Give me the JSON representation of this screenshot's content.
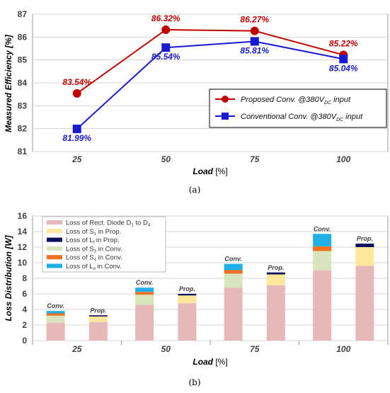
{
  "chart_data": [
    {
      "type": "line",
      "caption": "(a)",
      "xlabel": "Load [%]",
      "ylabel": "Measured Efficiency [%]",
      "categories": [
        "25",
        "50",
        "75",
        "100"
      ],
      "ylim": [
        81,
        87
      ],
      "yticks": [
        "81",
        "82",
        "83",
        "84",
        "85",
        "86",
        "87"
      ],
      "grid": true,
      "legend_position": "bottom-right",
      "series": [
        {
          "name_main": "Proposed Conv. @380V",
          "name_sub": "DC",
          "name_tail": " input",
          "values": [
            83.54,
            86.32,
            86.27,
            85.22
          ],
          "labels": [
            "83.54%",
            "86.32%",
            "86.27%",
            "85.22%"
          ],
          "color": "#c00000",
          "marker": "circle"
        },
        {
          "name_main": "Conventional Conv. @380V",
          "name_sub": "DC",
          "name_tail": " input",
          "values": [
            81.99,
            85.54,
            85.81,
            85.04
          ],
          "labels": [
            "81.99%",
            "85.54%",
            "85.81%",
            "85.04%"
          ],
          "color": "#1a1ad0",
          "marker": "square"
        }
      ]
    },
    {
      "type": "bar",
      "stacked": true,
      "caption": "(b)",
      "xlabel": "Load [%]",
      "ylabel": "Loss Distribution [W]",
      "categories": [
        "25",
        "50",
        "75",
        "100"
      ],
      "bar_labels": [
        "Conv.",
        "Prop."
      ],
      "ylim": [
        0,
        16
      ],
      "yticks": [
        "0",
        "2",
        "4",
        "6",
        "8",
        "10",
        "12",
        "14",
        "16"
      ],
      "grid": true,
      "legend_position": "top-left",
      "legend": [
        {
          "text": "Loss of Rect. Diode D",
          "sub1": "1",
          "mid": " to D",
          "sub2": "4",
          "color": "#e6b9b8"
        },
        {
          "text": "Loss of S",
          "sub1": "1",
          "mid": " in Prop.",
          "sub2": "",
          "color": "#ffe699"
        },
        {
          "text": "Loss of L",
          "sub1": "f",
          "mid": " in Prop.",
          "sub2": "",
          "color": "#0e0e5e"
        },
        {
          "text": "Loss of S",
          "sub1": "3",
          "mid": " in Conv.",
          "sub2": "",
          "color": "#d8e4bc"
        },
        {
          "text": "Loss of S",
          "sub1": "4",
          "mid": " in Conv.",
          "sub2": "",
          "color": "#f07020"
        },
        {
          "text": "Loss of L",
          "sub1": "o",
          "mid": " in Conv.",
          "sub2": "",
          "color": "#1fb0e8"
        }
      ],
      "bars": [
        {
          "category": "25",
          "group": "Conv.",
          "segments": [
            {
              "component": "Loss of Rect. Diode D1 to D4",
              "value": 2.3
            },
            {
              "component": "Loss of S3 in Conv.",
              "value": 0.9
            },
            {
              "component": "Loss of S4 in Conv.",
              "value": 0.3
            },
            {
              "component": "Loss of Lo in Conv.",
              "value": 0.3
            }
          ]
        },
        {
          "category": "25",
          "group": "Prop.",
          "segments": [
            {
              "component": "Loss of Rect. Diode D1 to D4",
              "value": 2.4
            },
            {
              "component": "Loss of S1 in Prop.",
              "value": 0.7
            },
            {
              "component": "Loss of Lf in Prop.",
              "value": 0.15
            }
          ]
        },
        {
          "category": "50",
          "group": "Conv.",
          "segments": [
            {
              "component": "Loss of Rect. Diode D1 to D4",
              "value": 4.6
            },
            {
              "component": "Loss of S3 in Conv.",
              "value": 1.3
            },
            {
              "component": "Loss of S4 in Conv.",
              "value": 0.35
            },
            {
              "component": "Loss of Lo in Conv.",
              "value": 0.55
            }
          ]
        },
        {
          "category": "50",
          "group": "Prop.",
          "segments": [
            {
              "component": "Loss of Rect. Diode D1 to D4",
              "value": 4.8
            },
            {
              "component": "Loss of S1 in Prop.",
              "value": 1.0
            },
            {
              "component": "Loss of Lf in Prop.",
              "value": 0.2
            }
          ]
        },
        {
          "category": "75",
          "group": "Conv.",
          "segments": [
            {
              "component": "Loss of Rect. Diode D1 to D4",
              "value": 6.8
            },
            {
              "component": "Loss of S3 in Conv.",
              "value": 1.8
            },
            {
              "component": "Loss of S4 in Conv.",
              "value": 0.45
            },
            {
              "component": "Loss of Lo in Conv.",
              "value": 0.8
            }
          ]
        },
        {
          "category": "75",
          "group": "Prop.",
          "segments": [
            {
              "component": "Loss of Rect. Diode D1 to D4",
              "value": 7.1
            },
            {
              "component": "Loss of S1 in Prop.",
              "value": 1.4
            },
            {
              "component": "Loss of Lf in Prop.",
              "value": 0.25
            }
          ]
        },
        {
          "category": "100",
          "group": "Conv.",
          "segments": [
            {
              "component": "Loss of Rect. Diode D1 to D4",
              "value": 9.0
            },
            {
              "component": "Loss of S3 in Conv.",
              "value": 2.5
            },
            {
              "component": "Loss of S4 in Conv.",
              "value": 0.6
            },
            {
              "component": "Loss of Lo in Conv.",
              "value": 1.6
            }
          ]
        },
        {
          "category": "100",
          "group": "Prop.",
          "segments": [
            {
              "component": "Loss of Rect. Diode D1 to D4",
              "value": 9.6
            },
            {
              "component": "Loss of S1 in Prop.",
              "value": 2.4
            },
            {
              "component": "Loss of Lf in Prop.",
              "value": 0.45
            }
          ]
        }
      ]
    }
  ]
}
